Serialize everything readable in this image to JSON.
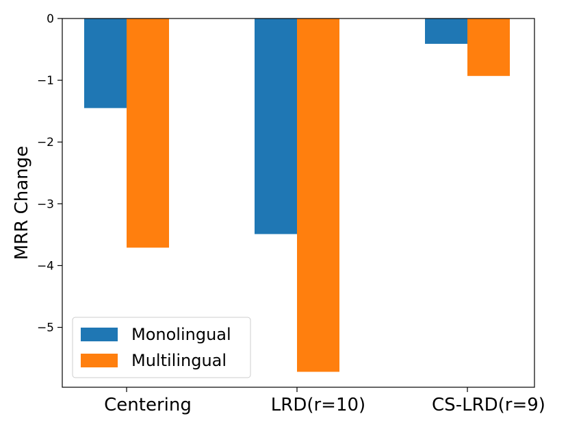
{
  "chart_data": {
    "type": "bar",
    "categories": [
      "Centering",
      "LRD(r=10)",
      "CS-LRD(r=9)"
    ],
    "series": [
      {
        "name": "Monolingual",
        "color": "#1f77b4",
        "values": [
          -1.45,
          -3.49,
          -0.41
        ]
      },
      {
        "name": "Multilingual",
        "color": "#ff7f0e",
        "values": [
          -3.71,
          -5.72,
          -0.93
        ]
      }
    ],
    "title": "",
    "xlabel": "",
    "ylabel": "MRR Change",
    "yticks": [
      0,
      -1,
      -2,
      -3,
      -4,
      -5
    ],
    "ytick_labels": [
      "0",
      "−1",
      "−2",
      "−3",
      "−4",
      "−5"
    ],
    "ylim": [
      -5.97,
      0
    ],
    "grid": false,
    "legend_position": "lower-left"
  }
}
